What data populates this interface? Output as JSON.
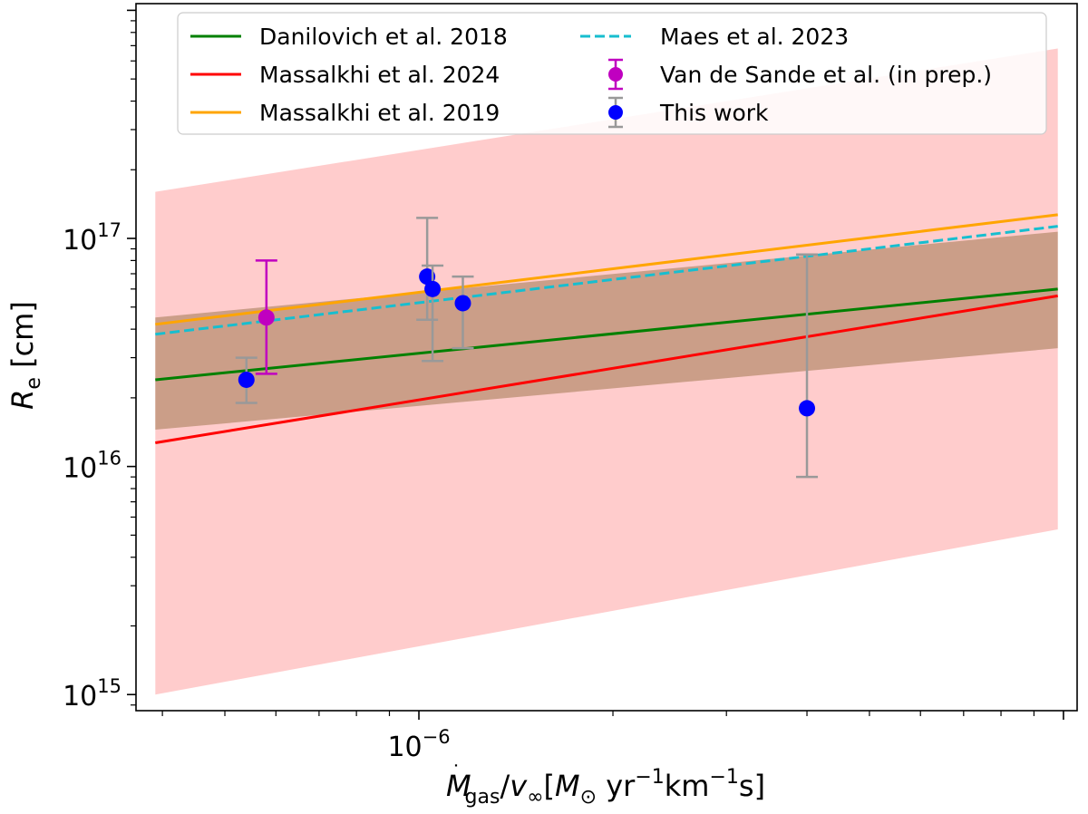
{
  "chart_data": {
    "type": "line",
    "title": "",
    "xscale": "log",
    "yscale": "log",
    "xlim": [
      3.64e-07,
      1.05e-05
    ],
    "ylim": [
      850000000000000.0,
      1.07e+18
    ],
    "xlabel": {
      "M": "M",
      "mdot": "˙",
      "gas": "gas",
      "slash": "/",
      "v": "v",
      "inf": "∞",
      "open": "[",
      "Msun": "M",
      "sun": "⊙",
      "yr": " yr",
      "m1a": "−1",
      "kms": "km",
      "m1b": "−1",
      "s": "s]"
    },
    "ylabel": {
      "R": "R",
      "e": "e",
      "unit": " [cm]"
    },
    "x_ticks": [
      {
        "value": 1e-06,
        "base": "10",
        "exp": "−6"
      }
    ],
    "y_ticks": [
      {
        "value": 1000000000000000.0,
        "base": "10",
        "exp": "15"
      },
      {
        "value": 1e+16,
        "base": "10",
        "exp": "16"
      },
      {
        "value": 1e+17,
        "base": "10",
        "exp": "17"
      }
    ],
    "shaded_regions": [
      {
        "name": "Massalkhi et al. 2024 uncertainty",
        "color": "#ff9999",
        "opacity": 0.5,
        "x": [
          3.9e-07,
          9.8e-06
        ],
        "lower": [
          1000000000000000.0,
          5300000000000000.0
        ],
        "upper": [
          1.6e+17,
          6.8e+17
        ]
      },
      {
        "name": "Danilovich et al. 2018 uncertainty",
        "color": "#a07850",
        "opacity": 0.55,
        "x": [
          3.9e-07,
          9.8e-06
        ],
        "lower": [
          1.45e+16,
          3.3e+16
        ],
        "upper": [
          4.5e+16,
          1.07e+17
        ]
      }
    ],
    "series": [
      {
        "name": "Danilovich et al. 2018",
        "color": "#008000",
        "style": "solid",
        "x": [
          3.9e-07,
          9.8e-06
        ],
        "y": [
          2.4e+16,
          6e+16
        ]
      },
      {
        "name": "Massalkhi et al. 2024",
        "color": "#ff0000",
        "style": "solid",
        "x": [
          3.9e-07,
          9.8e-06
        ],
        "y": [
          1.27e+16,
          5.6e+16
        ]
      },
      {
        "name": "Massalkhi et al. 2019",
        "color": "#ffa500",
        "style": "solid",
        "x": [
          3.9e-07,
          9.8e-06
        ],
        "y": [
          4.2e+16,
          1.27e+17
        ]
      },
      {
        "name": "Maes et al. 2023",
        "color": "#17becf",
        "style": "dashed",
        "x": [
          3.9e-07,
          9.8e-06
        ],
        "y": [
          3.8e+16,
          1.13e+17
        ]
      }
    ],
    "points": [
      {
        "name": "Van de Sande et al. (in prep.)",
        "color": "#c000c0",
        "ecolor": "#c000c0",
        "data": [
          {
            "x": 5.8e-07,
            "y": 4.5e+16,
            "ylo": 2.55e+16,
            "yhi": 8e+16
          }
        ]
      },
      {
        "name": "This work",
        "color": "#0000ff",
        "ecolor": "#999999",
        "data": [
          {
            "x": 5.4e-07,
            "y": 2.4e+16,
            "ylo": 1.9e+16,
            "yhi": 3e+16
          },
          {
            "x": 1.03e-06,
            "y": 6.8e+16,
            "ylo": 4.4e+16,
            "yhi": 1.23e+17
          },
          {
            "x": 1.05e-06,
            "y": 6e+16,
            "ylo": 2.9e+16,
            "yhi": 7.6e+16
          },
          {
            "x": 1.17e-06,
            "y": 5.2e+16,
            "ylo": 3.3e+16,
            "yhi": 6.8e+16
          },
          {
            "x": 4e-06,
            "y": 1.8e+16,
            "ylo": 9000000000000000.0,
            "yhi": 8.5e+16
          }
        ]
      }
    ],
    "legend": {
      "position": "top",
      "entries": [
        {
          "label": "Danilovich et al. 2018",
          "kind": "line",
          "color": "#008000"
        },
        {
          "label": "Massalkhi et al. 2024",
          "kind": "line",
          "color": "#ff0000"
        },
        {
          "label": "Massalkhi et al. 2019",
          "kind": "line",
          "color": "#ffa500"
        },
        {
          "label": "Maes et al. 2023",
          "kind": "dashed",
          "color": "#17becf"
        },
        {
          "label": "Van de Sande et al. (in prep.)",
          "kind": "errorbar",
          "color": "#c000c0",
          "ecolor": "#c000c0"
        },
        {
          "label": "This work",
          "kind": "errorbar",
          "color": "#0000ff",
          "ecolor": "#999999"
        }
      ]
    }
  }
}
